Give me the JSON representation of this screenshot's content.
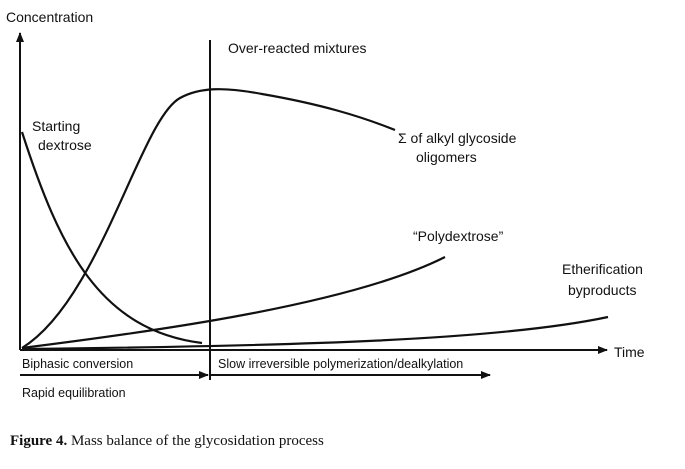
{
  "axes": {
    "y_label": "Concentration",
    "x_label": "Time"
  },
  "labels": {
    "over_reacted": "Over-reacted mixtures",
    "starting_dextrose": [
      "Starting",
      "dextrose"
    ],
    "oligomers": [
      "Σ of alkyl glycoside",
      "oligomers"
    ],
    "polydextrose": "“Polydextrose”",
    "etherification": [
      "Etherification",
      "byproducts"
    ]
  },
  "phases": {
    "biphasic": "Biphasic conversion",
    "slow": "Slow irreversible polymerization/dealkylation",
    "rapid": "Rapid equilibration"
  },
  "caption": {
    "number": "Figure 4.",
    "text": "Mass balance of the glycosidation process"
  }
}
